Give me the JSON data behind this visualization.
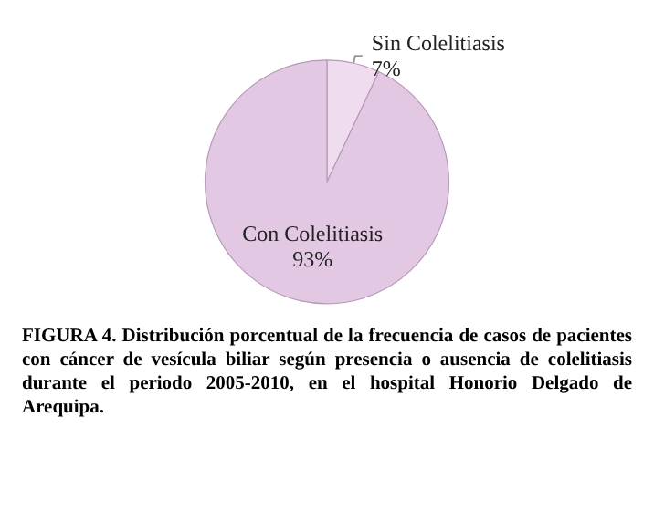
{
  "chart_data": {
    "type": "pie",
    "categories": [
      "Sin Colelitiasis",
      "Con Colelitiasis"
    ],
    "values": [
      7,
      93
    ],
    "value_labels": [
      "7%",
      "93%"
    ],
    "colors": [
      "#efdcef",
      "#e3c8e3"
    ],
    "annotations": [
      "FIGURA 4. Distribución porcentual de la frecuencia de casos de pacientes con cáncer de vesícula biliar según presencia o ausencia de colelitiasis durante el periodo 2005-2010, en el hospital Honorio Delgado de Arequipa."
    ]
  }
}
